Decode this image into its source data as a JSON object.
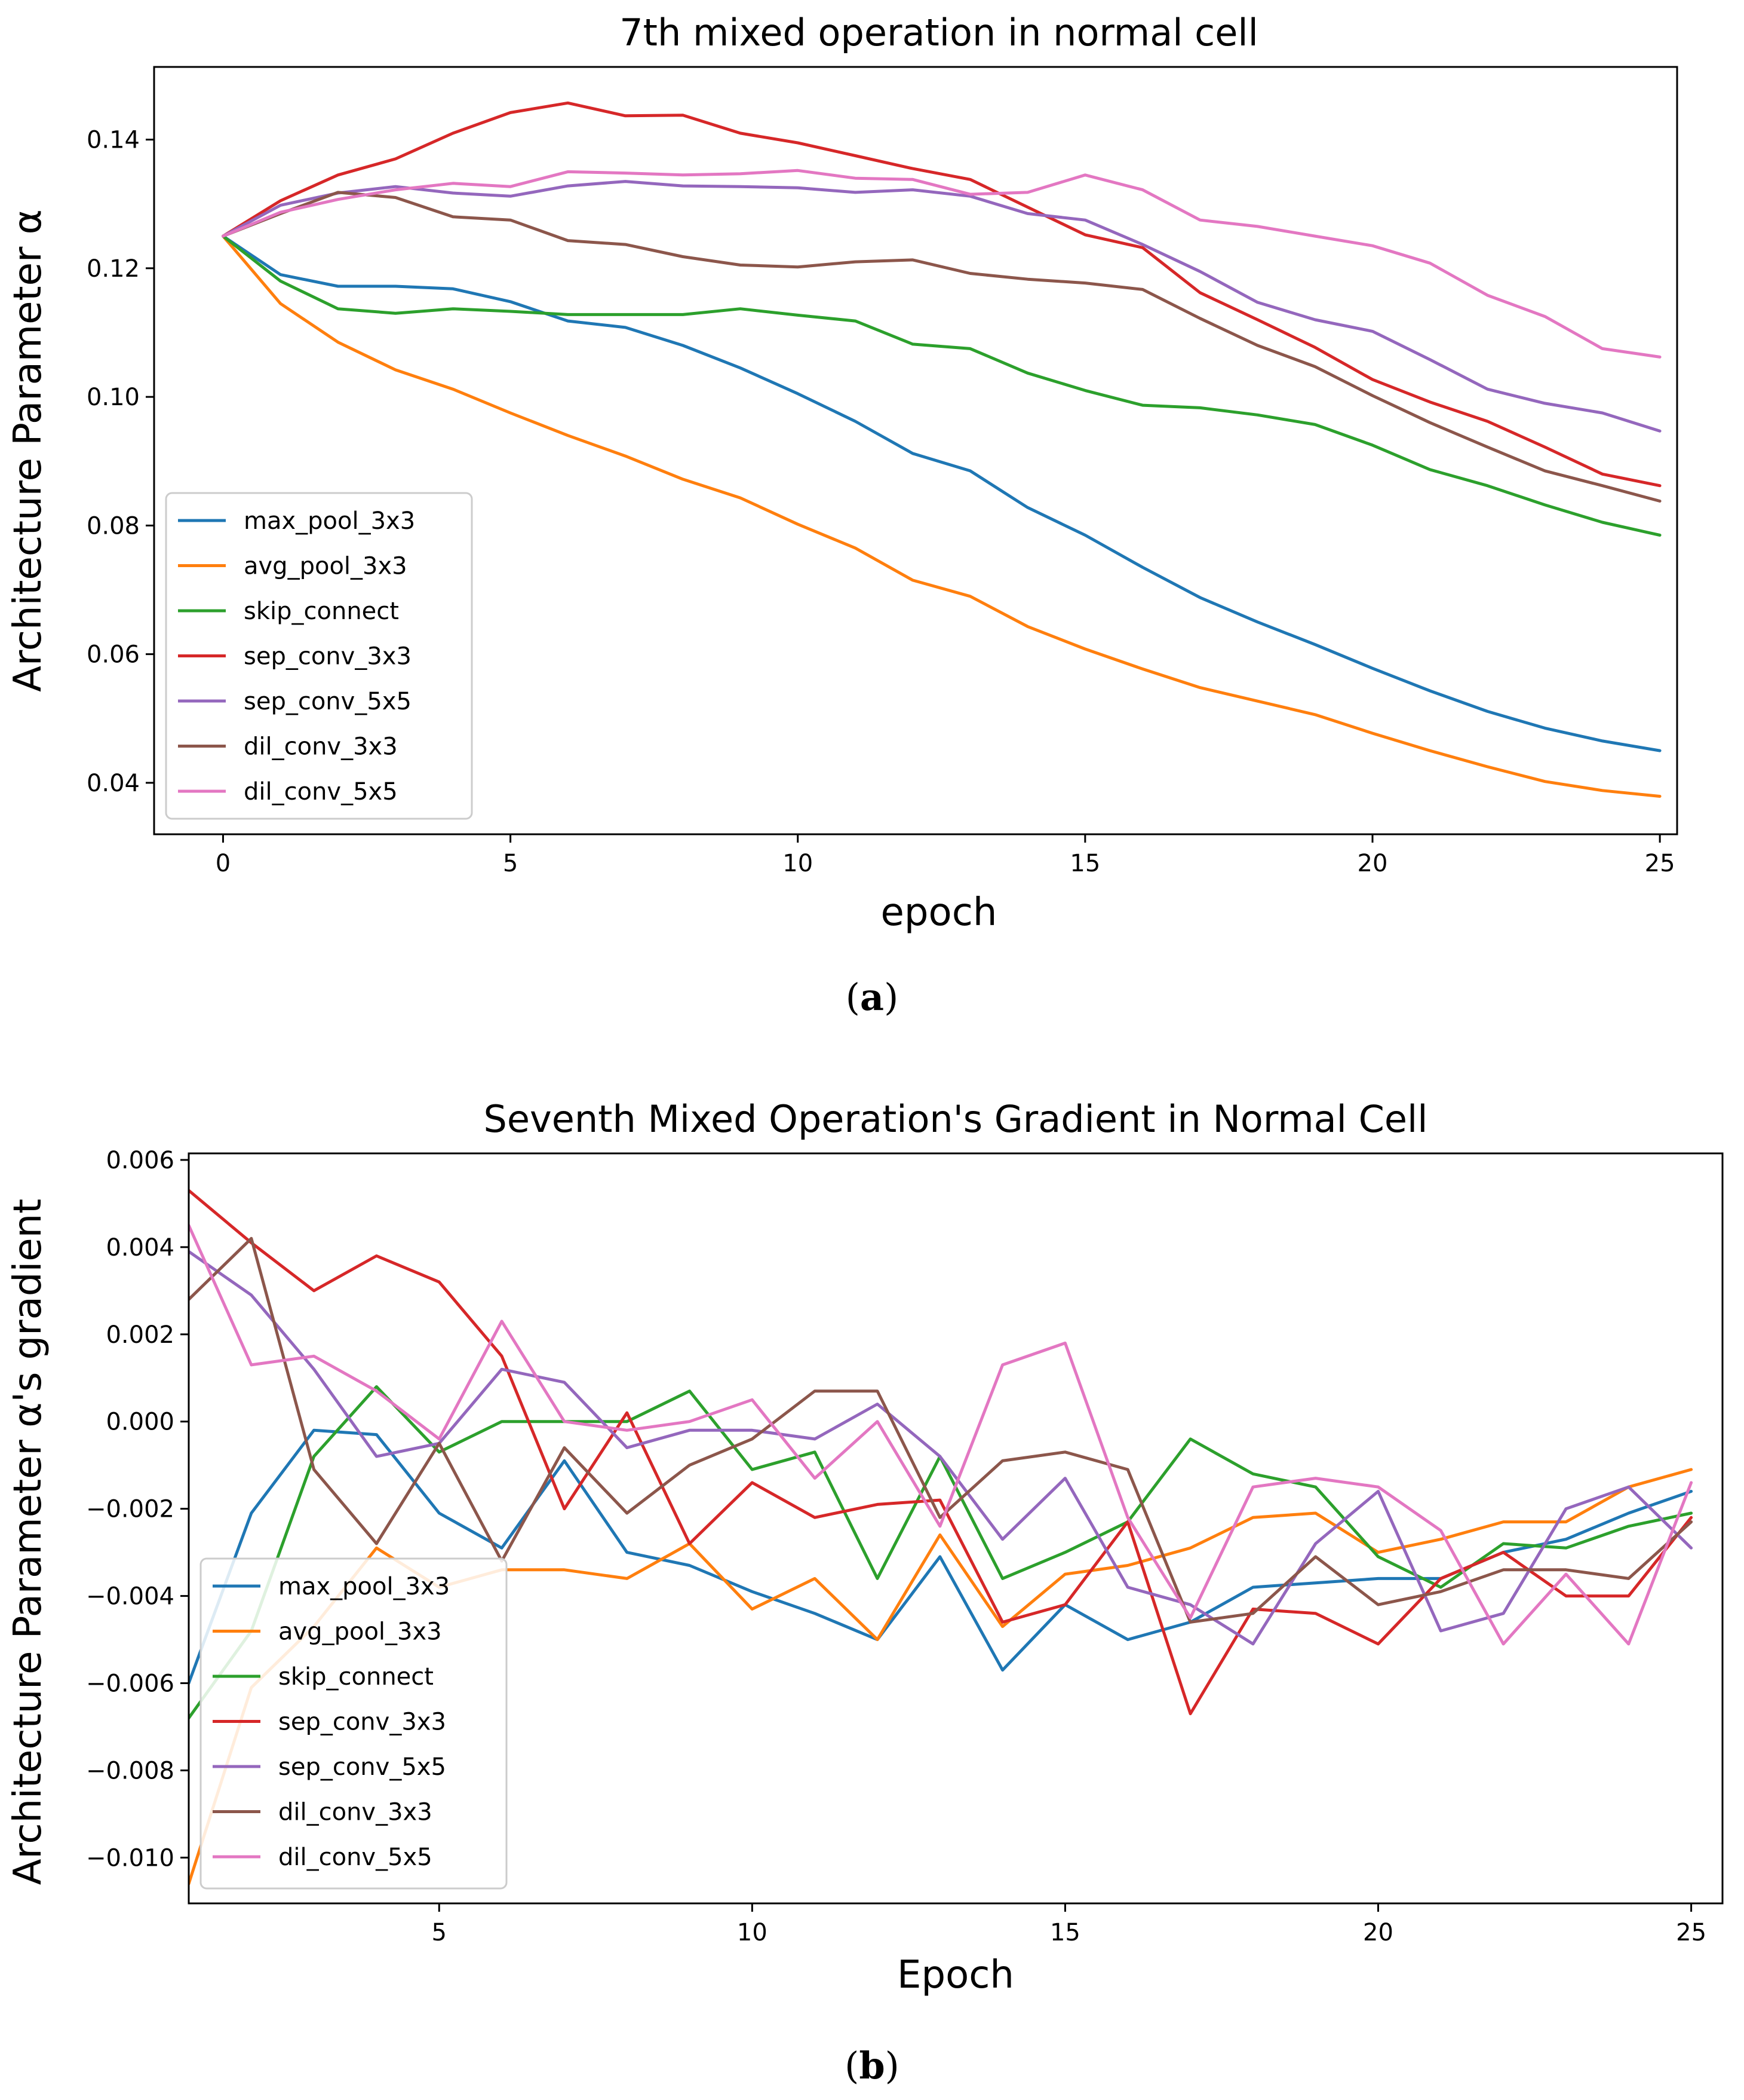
{
  "colors": {
    "max_pool_3x3": "#1f77b4",
    "avg_pool_3x3": "#ff7f0e",
    "skip_connect": "#2ca02c",
    "sep_conv_3x3": "#d62728",
    "sep_conv_5x5": "#9467bd",
    "dil_conv_3x3": "#8c564b",
    "dil_conv_5x5": "#e377c2"
  },
  "captions": {
    "a": {
      "open": "(",
      "letter": "a",
      "close": ")"
    },
    "b": {
      "open": "(",
      "letter": "b",
      "close": ")"
    }
  },
  "chart_data": [
    {
      "type": "line",
      "title": "7th mixed operation in normal cell",
      "xlabel": "epoch",
      "ylabel": "Architecture Parameter α",
      "xlim": [
        -1.2,
        25.3
      ],
      "ylim": [
        0.032,
        0.1513
      ],
      "xticks": [
        0,
        5,
        10,
        15,
        20,
        25
      ],
      "xtick_labels": [
        "0",
        "5",
        "10",
        "15",
        "20",
        "25"
      ],
      "yticks": [
        0.04,
        0.06,
        0.08,
        0.1,
        0.12,
        0.14
      ],
      "ytick_labels": [
        "0.04",
        "0.06",
        "0.08",
        "0.10",
        "0.12",
        "0.14"
      ],
      "legend": "lower-left",
      "x": [
        0,
        1,
        2,
        3,
        4,
        5,
        6,
        7,
        8,
        9,
        10,
        11,
        12,
        13,
        14,
        15,
        16,
        17,
        18,
        19,
        20,
        21,
        22,
        23,
        24,
        25
      ],
      "series": [
        {
          "name": "max_pool_3x3",
          "values": [
            0.125,
            0.119,
            0.1172,
            0.1172,
            0.1168,
            0.1148,
            0.1118,
            0.1108,
            0.108,
            0.1045,
            0.1005,
            0.0962,
            0.0912,
            0.0885,
            0.0828,
            0.0785,
            0.0735,
            0.0688,
            0.065,
            0.0615,
            0.0578,
            0.0543,
            0.0511,
            0.0485,
            0.0465,
            0.045
          ]
        },
        {
          "name": "avg_pool_3x3",
          "values": [
            0.125,
            0.1145,
            0.1085,
            0.1042,
            0.1012,
            0.0975,
            0.094,
            0.0908,
            0.0872,
            0.0843,
            0.0802,
            0.0765,
            0.0715,
            0.069,
            0.0643,
            0.0608,
            0.0577,
            0.0548,
            0.0527,
            0.0506,
            0.0477,
            0.045,
            0.0425,
            0.0402,
            0.0388,
            0.0379
          ]
        },
        {
          "name": "skip_connect",
          "values": [
            0.125,
            0.118,
            0.1137,
            0.113,
            0.1137,
            0.1133,
            0.1128,
            0.1128,
            0.1128,
            0.1137,
            0.1127,
            0.1118,
            0.1082,
            0.1075,
            0.1037,
            0.101,
            0.0987,
            0.0983,
            0.0972,
            0.0957,
            0.0925,
            0.0887,
            0.0862,
            0.0832,
            0.0805,
            0.0785
          ]
        },
        {
          "name": "sep_conv_3x3",
          "values": [
            0.125,
            0.1305,
            0.1345,
            0.137,
            0.141,
            0.1442,
            0.1457,
            0.1437,
            0.1438,
            0.141,
            0.1395,
            0.1375,
            0.1355,
            0.1338,
            0.1295,
            0.1252,
            0.1232,
            0.1162,
            0.112,
            0.1077,
            0.1027,
            0.0992,
            0.0962,
            0.0922,
            0.088,
            0.0862
          ]
        },
        {
          "name": "sep_conv_5x5",
          "values": [
            0.125,
            0.1298,
            0.1317,
            0.1327,
            0.1317,
            0.1312,
            0.1328,
            0.1335,
            0.1328,
            0.1327,
            0.1325,
            0.1318,
            0.1322,
            0.1312,
            0.1285,
            0.1275,
            0.1237,
            0.1195,
            0.1147,
            0.112,
            0.1102,
            0.1058,
            0.1012,
            0.099,
            0.0975,
            0.0947
          ]
        },
        {
          "name": "dil_conv_3x3",
          "values": [
            0.125,
            0.1285,
            0.1318,
            0.131,
            0.128,
            0.1275,
            0.1243,
            0.1237,
            0.1218,
            0.1205,
            0.1202,
            0.121,
            0.1213,
            0.1192,
            0.1183,
            0.1177,
            0.1167,
            0.1122,
            0.108,
            0.1047,
            0.1002,
            0.096,
            0.0922,
            0.0885,
            0.0862,
            0.0838
          ]
        },
        {
          "name": "dil_conv_5x5",
          "values": [
            0.125,
            0.1287,
            0.1307,
            0.1322,
            0.1332,
            0.1327,
            0.135,
            0.1348,
            0.1345,
            0.1347,
            0.1352,
            0.134,
            0.1338,
            0.1315,
            0.1318,
            0.1345,
            0.1322,
            0.1275,
            0.1265,
            0.125,
            0.1235,
            0.1208,
            0.1158,
            0.1125,
            0.1075,
            0.1062
          ]
        }
      ]
    },
    {
      "type": "line",
      "title": "Seventh Mixed Operation's Gradient in Normal Cell",
      "xlabel": "Epoch",
      "ylabel": "Architecture Parameter α's gradient",
      "xlim": [
        1,
        25.5
      ],
      "ylim": [
        -0.01105,
        0.00615
      ],
      "xticks": [
        5,
        10,
        15,
        20,
        25
      ],
      "xtick_labels": [
        "5",
        "10",
        "15",
        "20",
        "25"
      ],
      "yticks": [
        -0.01,
        -0.008,
        -0.006,
        -0.004,
        -0.002,
        0.0,
        0.002,
        0.004,
        0.006
      ],
      "ytick_labels": [
        "−0.010",
        "−0.008",
        "−0.006",
        "−0.004",
        "−0.002",
        "0.000",
        "0.002",
        "0.004",
        "0.006"
      ],
      "legend": "lower-left",
      "x": [
        1,
        2,
        3,
        4,
        5,
        6,
        7,
        8,
        9,
        10,
        11,
        12,
        13,
        14,
        15,
        16,
        17,
        18,
        19,
        20,
        21,
        22,
        23,
        24,
        25
      ],
      "series": [
        {
          "name": "max_pool_3x3",
          "values": [
            -0.006,
            -0.0021,
            -0.0002,
            -0.0003,
            -0.0021,
            -0.0029,
            -0.0009,
            -0.003,
            -0.0033,
            -0.0039,
            -0.0044,
            -0.005,
            -0.0031,
            -0.0057,
            -0.0042,
            -0.005,
            -0.0046,
            -0.0038,
            -0.0037,
            -0.0036,
            -0.0036,
            -0.003,
            -0.0027,
            -0.0021,
            -0.0016
          ]
        },
        {
          "name": "avg_pool_3x3",
          "values": [
            -0.0106,
            -0.0061,
            -0.0047,
            -0.0029,
            -0.0038,
            -0.0034,
            -0.0034,
            -0.0036,
            -0.0028,
            -0.0043,
            -0.0036,
            -0.005,
            -0.0026,
            -0.0047,
            -0.0035,
            -0.0033,
            -0.0029,
            -0.0022,
            -0.0021,
            -0.003,
            -0.0027,
            -0.0023,
            -0.0023,
            -0.0015,
            -0.0011
          ]
        },
        {
          "name": "skip_connect",
          "values": [
            -0.0068,
            -0.0048,
            -0.0008,
            0.0008,
            -0.0007,
            0.0,
            0.0,
            0.0,
            0.0007,
            -0.0011,
            -0.0007,
            -0.0036,
            -0.0008,
            -0.0036,
            -0.003,
            -0.0023,
            -0.0004,
            -0.0012,
            -0.0015,
            -0.0031,
            -0.0038,
            -0.0028,
            -0.0029,
            -0.0024,
            -0.0021
          ]
        },
        {
          "name": "sep_conv_3x3",
          "values": [
            0.0053,
            0.0041,
            0.003,
            0.0038,
            0.0032,
            0.0015,
            -0.002,
            0.0002,
            -0.0028,
            -0.0014,
            -0.0022,
            -0.0019,
            -0.0018,
            -0.0046,
            -0.0042,
            -0.0023,
            -0.0067,
            -0.0043,
            -0.0044,
            -0.0051,
            -0.0036,
            -0.003,
            -0.004,
            -0.004,
            -0.0022
          ]
        },
        {
          "name": "sep_conv_5x5",
          "values": [
            0.0039,
            0.0029,
            0.0012,
            -0.0008,
            -0.0005,
            0.0012,
            0.0009,
            -0.0006,
            -0.0002,
            -0.0002,
            -0.0004,
            0.0004,
            -0.0008,
            -0.0027,
            -0.0013,
            -0.0038,
            -0.0042,
            -0.0051,
            -0.0028,
            -0.0016,
            -0.0048,
            -0.0044,
            -0.002,
            -0.0015,
            -0.0029
          ]
        },
        {
          "name": "dil_conv_3x3",
          "values": [
            0.0028,
            0.0042,
            -0.0011,
            -0.0028,
            -0.0005,
            -0.0032,
            -0.0006,
            -0.0021,
            -0.001,
            -0.0004,
            0.0007,
            0.0007,
            -0.0022,
            -0.0009,
            -0.0007,
            -0.0011,
            -0.0046,
            -0.0044,
            -0.0031,
            -0.0042,
            -0.0039,
            -0.0034,
            -0.0034,
            -0.0036,
            -0.0023
          ]
        },
        {
          "name": "dil_conv_5x5",
          "values": [
            0.0045,
            0.0013,
            0.0015,
            0.0007,
            -0.0004,
            0.0023,
            0.0,
            -0.0002,
            0.0,
            0.0005,
            -0.0013,
            0.0,
            -0.0024,
            0.0013,
            0.0018,
            -0.0022,
            -0.0045,
            -0.0015,
            -0.0013,
            -0.0015,
            -0.0025,
            -0.0051,
            -0.0035,
            -0.0051,
            -0.0014
          ]
        }
      ]
    }
  ]
}
